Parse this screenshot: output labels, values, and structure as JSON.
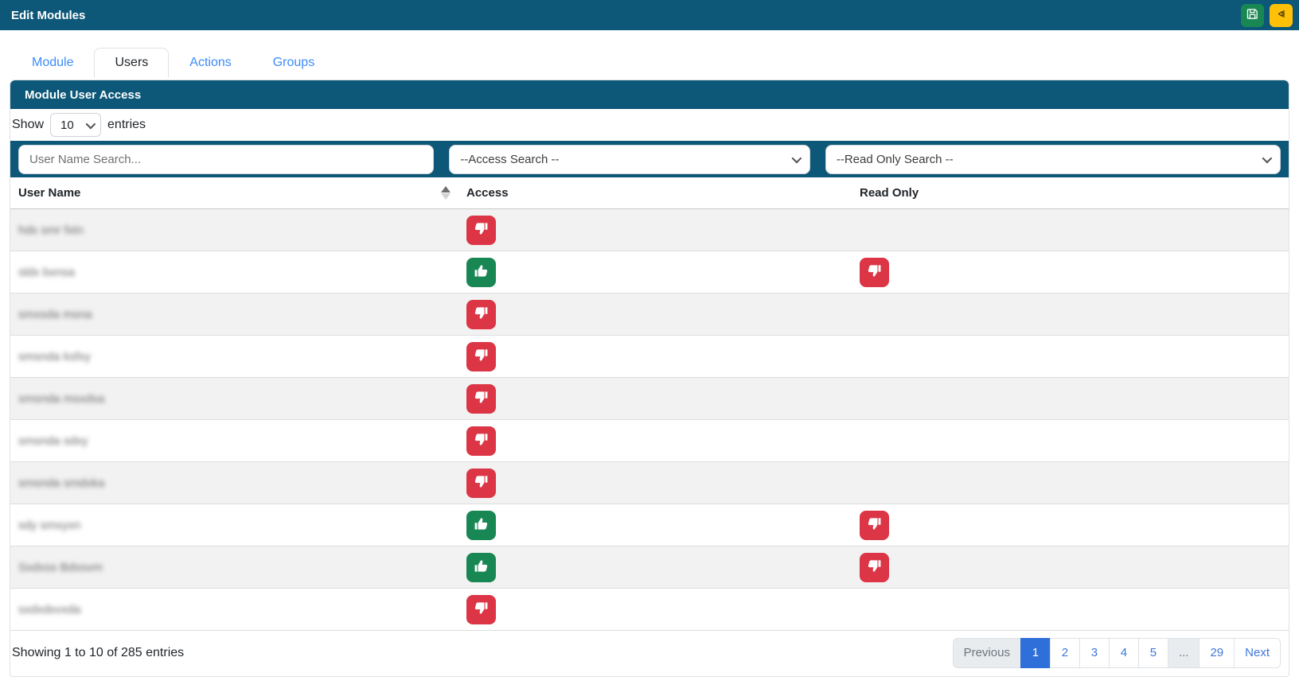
{
  "header": {
    "title": "Edit Modules",
    "save_color": "#198754",
    "back_color": "#ffc107"
  },
  "tabs": [
    {
      "label": "Module",
      "active": false
    },
    {
      "label": "Users",
      "active": true
    },
    {
      "label": "Actions",
      "active": false
    },
    {
      "label": "Groups",
      "active": false
    }
  ],
  "panel": {
    "title": "Module User Access"
  },
  "length_control": {
    "prefix": "Show",
    "selected": "10",
    "suffix": "entries"
  },
  "filters": {
    "user_name_placeholder": "User Name Search...",
    "access_placeholder": "--Access Search --",
    "read_only_placeholder": "--Read Only Search --"
  },
  "table": {
    "columns": {
      "user_name": "User Name",
      "access": "Access",
      "read_only": "Read Only"
    },
    "sort": {
      "column": "User Name",
      "direction": "asc"
    },
    "rows": [
      {
        "name_redacted": "hds smr fxtn",
        "access": "down",
        "read_only": null
      },
      {
        "name_redacted": "sldx bxnsa",
        "access": "up",
        "read_only": "down"
      },
      {
        "name_redacted": "smxsda msna",
        "access": "down",
        "read_only": null
      },
      {
        "name_redacted": "smsnda ksfxy",
        "access": "down",
        "read_only": null
      },
      {
        "name_redacted": "smsnda msxdsa",
        "access": "down",
        "read_only": null
      },
      {
        "name_redacted": "smsnda sdxy",
        "access": "down",
        "read_only": null
      },
      {
        "name_redacted": "smsnda smdxka",
        "access": "down",
        "read_only": null
      },
      {
        "name_redacted": "sdy smxyxn",
        "access": "up",
        "read_only": "down"
      },
      {
        "name_redacted": "Sxdxss Bdxsvm",
        "access": "up",
        "read_only": "down"
      },
      {
        "name_redacted": "sxdxdxvxda",
        "access": "down",
        "read_only": null
      }
    ]
  },
  "footer": {
    "status": "Showing 1 to 10 of 285 entries",
    "pagination": [
      {
        "label": "Previous",
        "type": "disabled"
      },
      {
        "label": "1",
        "type": "active"
      },
      {
        "label": "2",
        "type": "page"
      },
      {
        "label": "3",
        "type": "page"
      },
      {
        "label": "4",
        "type": "page"
      },
      {
        "label": "5",
        "type": "page"
      },
      {
        "label": "...",
        "type": "disabled"
      },
      {
        "label": "29",
        "type": "page"
      },
      {
        "label": "Next",
        "type": "page"
      }
    ]
  },
  "colors": {
    "brand_teal": "#0d5778",
    "danger_red": "#dc3545",
    "success_green": "#198754",
    "warning_yellow": "#ffc107",
    "active_page_blue": "#2e6fd9",
    "tab_link_blue": "#3d8bfd",
    "stripe_gray": "#f2f2f2"
  }
}
